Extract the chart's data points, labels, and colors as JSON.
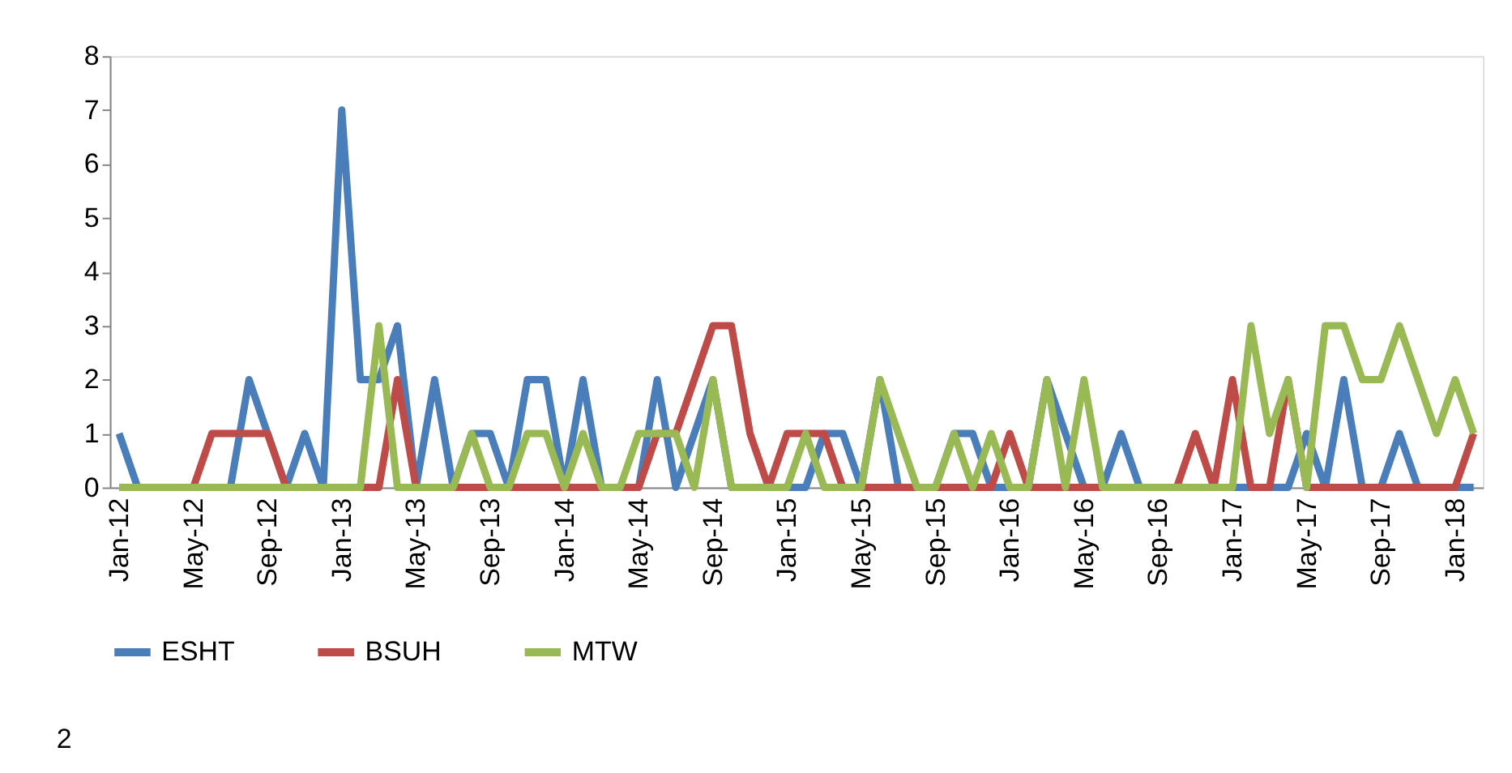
{
  "chart_data": {
    "type": "line",
    "categories": [
      "Jan-12",
      null,
      null,
      null,
      "May-12",
      null,
      null,
      null,
      "Sep-12",
      null,
      null,
      null,
      "Jan-13",
      null,
      null,
      null,
      "May-13",
      null,
      null,
      null,
      "Sep-13",
      null,
      null,
      null,
      "Jan-14",
      null,
      null,
      null,
      "May-14",
      null,
      null,
      null,
      "Sep-14",
      null,
      null,
      null,
      "Jan-15",
      null,
      null,
      null,
      "May-15",
      null,
      null,
      null,
      "Sep-15",
      null,
      null,
      null,
      "Jan-16",
      null,
      null,
      null,
      "May-16",
      null,
      null,
      null,
      "Sep-16",
      null,
      null,
      null,
      "Jan-17",
      null,
      null,
      null,
      "May-17",
      null,
      null,
      null,
      "Sep-17",
      null,
      null,
      null,
      "Jan-18",
      null
    ],
    "series": [
      {
        "name": "ESHT",
        "color": "#4a7ebb",
        "values": [
          1,
          0,
          0,
          0,
          0,
          0,
          0,
          2,
          1,
          0,
          1,
          0,
          7,
          2,
          2,
          3,
          0,
          2,
          0,
          1,
          1,
          0,
          2,
          2,
          0,
          2,
          0,
          0,
          0,
          2,
          0,
          1,
          2,
          0,
          0,
          0,
          0,
          0,
          1,
          1,
          0,
          2,
          0,
          0,
          0,
          1,
          1,
          0,
          0,
          0,
          2,
          1,
          0,
          0,
          1,
          0,
          0,
          0,
          0,
          0,
          0,
          0,
          0,
          0,
          1,
          0,
          2,
          0,
          0,
          1,
          0,
          0,
          0,
          0
        ]
      },
      {
        "name": "BSUH",
        "color": "#be4b48",
        "values": [
          null,
          null,
          0,
          0,
          0,
          1,
          1,
          1,
          1,
          0,
          0,
          0,
          0,
          0,
          0,
          2,
          0,
          0,
          0,
          0,
          0,
          0,
          0,
          0,
          0,
          0,
          0,
          0,
          0,
          1,
          1,
          2,
          3,
          3,
          1,
          0,
          1,
          1,
          1,
          0,
          0,
          0,
          0,
          0,
          0,
          0,
          0,
          0,
          1,
          0,
          0,
          0,
          0,
          0,
          0,
          0,
          0,
          0,
          1,
          0,
          2,
          0,
          0,
          2,
          0,
          0,
          0,
          0,
          0,
          0,
          0,
          0,
          0,
          1
        ]
      },
      {
        "name": "MTW",
        "color": "#98b954",
        "values": [
          0,
          0,
          0,
          0,
          0,
          0,
          0,
          0,
          0,
          0,
          0,
          0,
          0,
          0,
          3,
          0,
          0,
          0,
          0,
          1,
          0,
          0,
          1,
          1,
          0,
          1,
          0,
          0,
          1,
          1,
          1,
          0,
          2,
          0,
          0,
          0,
          0,
          1,
          0,
          0,
          0,
          2,
          1,
          0,
          0,
          1,
          0,
          1,
          0,
          0,
          2,
          0,
          2,
          0,
          0,
          0,
          0,
          0,
          0,
          0,
          0,
          3,
          1,
          2,
          0,
          3,
          3,
          2,
          2,
          3,
          2,
          1,
          2,
          1
        ]
      }
    ],
    "ylim": [
      0,
      8
    ],
    "yticks": [
      0,
      1,
      2,
      3,
      4,
      5,
      6,
      7,
      8
    ],
    "legend": "bottom",
    "annotations": [
      "2"
    ]
  }
}
